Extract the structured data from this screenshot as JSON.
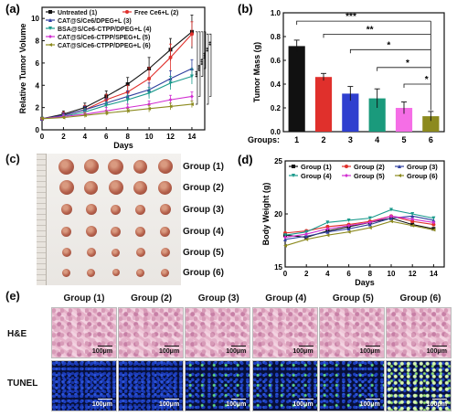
{
  "panels": {
    "a": "(a)",
    "b": "(b)",
    "c": "(c)",
    "d": "(d)",
    "e": "(e)"
  },
  "chart_data": [
    {
      "type": "line",
      "panel": "(a)",
      "xlabel": "Days",
      "ylabel": "Relative Tumor Volume",
      "x": [
        0,
        2,
        4,
        6,
        8,
        10,
        12,
        14
      ],
      "xticks": [
        0,
        2,
        4,
        6,
        8,
        10,
        12,
        14
      ],
      "yticks": [
        0,
        2,
        4,
        6,
        8,
        10
      ],
      "xlim": [
        0,
        15.2
      ],
      "ylim": [
        0,
        11
      ],
      "legend_position": "top-left",
      "significance": [
        "***",
        "***",
        "***",
        "***",
        "**",
        "**"
      ],
      "series": [
        {
          "name": "Untreated (1)",
          "color": "#111111",
          "marker": "square",
          "values": [
            1,
            1.4,
            2.0,
            3.0,
            4.1,
            5.5,
            7.2,
            8.8
          ],
          "errors": [
            0.1,
            0.3,
            0.4,
            0.5,
            0.6,
            1.0,
            1.0,
            1.5
          ]
        },
        {
          "name": "Free Ce6+L (2)",
          "color": "#e0302c",
          "marker": "circle",
          "values": [
            1,
            1.3,
            1.8,
            2.7,
            3.4,
            4.6,
            6.5,
            8.6
          ],
          "errors": [
            0.1,
            0.3,
            0.4,
            0.5,
            0.6,
            1.0,
            1.2,
            1.1
          ]
        },
        {
          "name": "CAT@S/Ce6/DPEG+L (3)",
          "color": "#2f3f9e",
          "marker": "triangle-up",
          "values": [
            1,
            1.3,
            1.8,
            2.4,
            3.0,
            3.6,
            4.6,
            5.5
          ],
          "errors": [
            0.1,
            0.2,
            0.3,
            0.4,
            0.5,
            0.6,
            0.7,
            0.8
          ]
        },
        {
          "name": "BSA@S/Ce6-CTPP/DPEG+L (4)",
          "color": "#1a9a8c",
          "marker": "triangle-down",
          "values": [
            1,
            1.2,
            1.6,
            2.2,
            2.7,
            3.3,
            4.2,
            4.8
          ],
          "errors": [
            0.1,
            0.2,
            0.3,
            0.3,
            0.4,
            0.5,
            0.6,
            0.7
          ]
        },
        {
          "name": "CAT@S/Ce6-CTPP/SPEG+L (5)",
          "color": "#d12ed1",
          "marker": "diamond",
          "values": [
            1,
            1.2,
            1.4,
            1.7,
            2.0,
            2.3,
            2.7,
            3.0
          ],
          "errors": [
            0.1,
            0.2,
            0.2,
            0.3,
            0.3,
            0.3,
            0.4,
            0.4
          ]
        },
        {
          "name": "CAT@S/Ce6-CTPP/DPEG+L (6)",
          "color": "#8c8a1e",
          "marker": "triangle-left",
          "values": [
            1,
            1.1,
            1.3,
            1.5,
            1.7,
            1.9,
            2.1,
            2.3
          ],
          "errors": [
            0.1,
            0.1,
            0.2,
            0.2,
            0.2,
            0.3,
            0.3,
            0.3
          ]
        }
      ]
    },
    {
      "type": "bar",
      "panel": "(b)",
      "xlabel": "Groups:",
      "ylabel": "Tumor Mass (g)",
      "categories": [
        "1",
        "2",
        "3",
        "4",
        "5",
        "6"
      ],
      "values": [
        0.72,
        0.46,
        0.32,
        0.28,
        0.2,
        0.13
      ],
      "errors": [
        0.05,
        0.03,
        0.06,
        0.08,
        0.05,
        0.04
      ],
      "colors": [
        "#111111",
        "#e0302c",
        "#2f3fcf",
        "#1a9a7c",
        "#f56ee6",
        "#8c8a1e"
      ],
      "yticks": [
        0.0,
        0.2,
        0.4,
        0.6,
        0.8,
        1.0
      ],
      "yticklabels": [
        "0.0",
        "0.2",
        "0.4",
        "0.6",
        "0.8",
        "1.0"
      ],
      "ylim": [
        0,
        1.0
      ],
      "significance": [
        "***",
        "**",
        "*",
        "*",
        "*"
      ]
    },
    {
      "type": "line",
      "panel": "(d)",
      "xlabel": "Days",
      "ylabel": "Body Weight (g)",
      "x": [
        0,
        2,
        4,
        6,
        8,
        10,
        12,
        14
      ],
      "xticks": [
        0,
        2,
        4,
        6,
        8,
        10,
        12,
        14
      ],
      "yticks": [
        15,
        20,
        25
      ],
      "xlim": [
        0,
        15
      ],
      "ylim": [
        15,
        25
      ],
      "legend_position": "top",
      "series": [
        {
          "name": "Group (1)",
          "color": "#111111",
          "marker": "square",
          "values": [
            18.0,
            17.8,
            18.4,
            18.8,
            19.2,
            19.6,
            19.0,
            18.6
          ]
        },
        {
          "name": "Group (2)",
          "color": "#e0302c",
          "marker": "circle",
          "values": [
            18.2,
            18.4,
            18.8,
            19.0,
            19.3,
            19.8,
            19.3,
            19.0
          ]
        },
        {
          "name": "Group (3)",
          "color": "#2f3f9e",
          "marker": "triangle-up",
          "values": [
            17.6,
            17.9,
            18.3,
            18.6,
            19.0,
            19.6,
            19.8,
            19.4
          ]
        },
        {
          "name": "Group (4)",
          "color": "#1a9a8c",
          "marker": "triangle-down",
          "values": [
            18.0,
            18.3,
            19.2,
            19.4,
            19.6,
            20.4,
            20.0,
            19.6
          ]
        },
        {
          "name": "Group (5)",
          "color": "#d12ed1",
          "marker": "diamond",
          "values": [
            17.8,
            18.1,
            18.6,
            18.9,
            19.2,
            19.8,
            19.5,
            19.2
          ]
        },
        {
          "name": "Group (6)",
          "color": "#8c8a1e",
          "marker": "triangle-left",
          "values": [
            17.0,
            17.6,
            18.0,
            18.3,
            18.7,
            19.3,
            18.9,
            18.5
          ]
        }
      ]
    }
  ],
  "photo": {
    "groups": [
      "Group (1)",
      "Group (2)",
      "Group (3)",
      "Group (4)",
      "Group (5)",
      "Group (6)"
    ]
  },
  "histology": {
    "groups": [
      "Group (1)",
      "Group (2)",
      "Group (3)",
      "Group (4)",
      "Group (5)",
      "Group (6)"
    ],
    "rows": [
      "H&E",
      "TUNEL"
    ],
    "scale_label": "100μm"
  }
}
